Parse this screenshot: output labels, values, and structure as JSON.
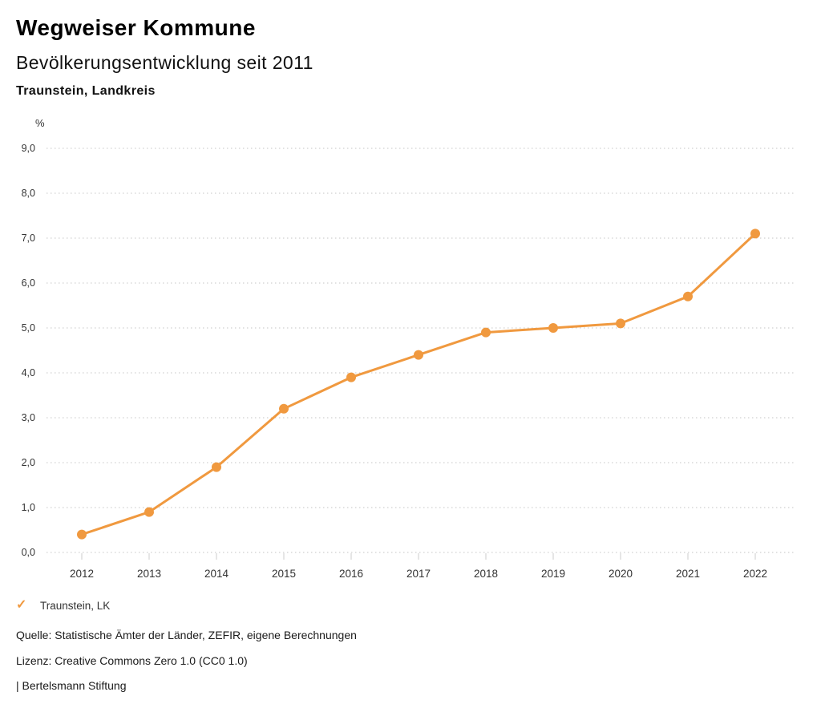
{
  "header": {
    "title": "Wegweiser Kommune",
    "subtitle": "Bevölkerungsentwicklung seit 2011",
    "region": "Traunstein, Landkreis"
  },
  "chart_data": {
    "type": "line",
    "title": "Wegweiser Kommune",
    "subtitle": "Bevölkerungsentwicklung seit 2011",
    "region": "Traunstein, Landkreis",
    "ylabel": "%",
    "xlabel": "",
    "x": [
      "2012",
      "2013",
      "2014",
      "2015",
      "2016",
      "2017",
      "2018",
      "2019",
      "2020",
      "2021",
      "2022"
    ],
    "series": [
      {
        "name": "Traunstein, LK",
        "color": "#F0993F",
        "values": [
          0.4,
          0.9,
          1.9,
          3.2,
          3.9,
          4.4,
          4.9,
          5.0,
          5.1,
          5.7,
          7.1
        ]
      }
    ],
    "ylim": [
      0,
      9
    ],
    "ytick_step": 1,
    "ytick_labels": [
      "0,0",
      "1,0",
      "2,0",
      "3,0",
      "4,0",
      "5,0",
      "6,0",
      "7,0",
      "8,0",
      "9,0"
    ],
    "grid": "horizontal-dotted",
    "grid_color": "#c6c6c6",
    "tick_color": "#cccccc",
    "axis_text_color": "#333333",
    "legend_position": "bottom-left"
  },
  "legend": {
    "check_icon": "✓",
    "label": "Traunstein, LK",
    "color": "#F0993F"
  },
  "footer": {
    "source": "Quelle: Statistische Ämter der Länder, ZEFIR, eigene Berechnungen",
    "license": "Lizenz: Creative Commons Zero 1.0 (CC0 1.0)",
    "attribution": "| Bertelsmann Stiftung"
  }
}
